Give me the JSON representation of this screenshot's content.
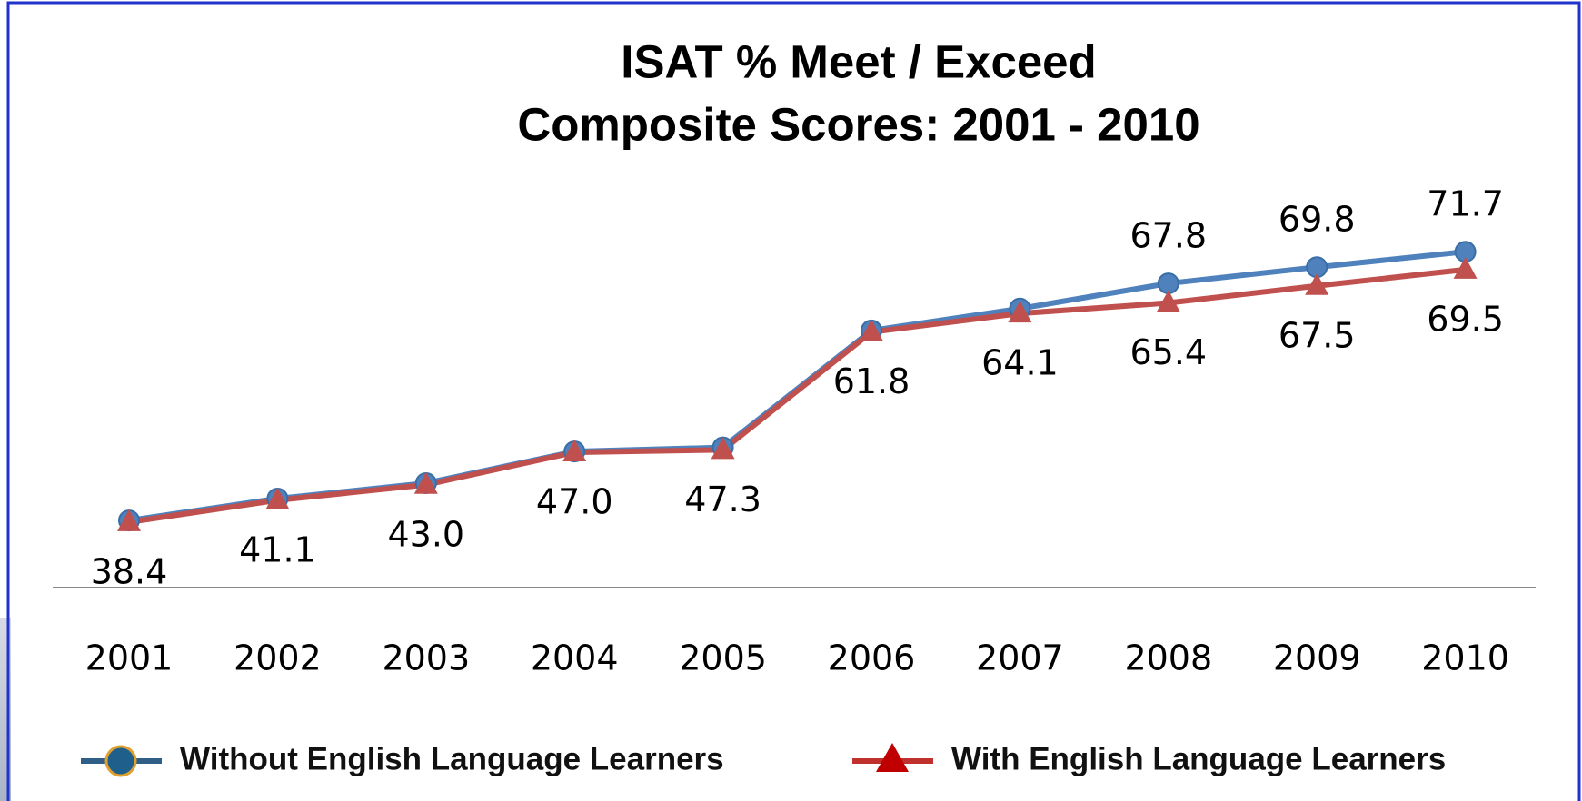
{
  "chart_data": {
    "type": "line",
    "title": [
      "ISAT % Meet / Exceed",
      "Composite Scores: 2001 - 2010"
    ],
    "categories": [
      "2001",
      "2002",
      "2003",
      "2004",
      "2005",
      "2006",
      "2007",
      "2008",
      "2009",
      "2010"
    ],
    "series": [
      {
        "name": "Without English Language Learners",
        "color": "#4f81bd",
        "marker": "circle",
        "values": [
          38.6,
          41.3,
          43.2,
          47.1,
          47.6,
          62.0,
          64.7,
          67.8,
          69.8,
          71.7
        ],
        "value_labels": [
          null,
          null,
          null,
          null,
          null,
          null,
          null,
          "67.8",
          "69.8",
          "71.7"
        ]
      },
      {
        "name": "With English Language Learners",
        "color": "#c0504d",
        "marker": "triangle",
        "values": [
          38.4,
          41.1,
          43.0,
          47.0,
          47.3,
          61.8,
          64.1,
          65.4,
          67.5,
          69.5
        ],
        "value_labels": [
          "38.4",
          "41.1",
          "43.0",
          "47.0",
          "47.3",
          "61.8",
          "64.1",
          "65.4",
          "67.5",
          "69.5"
        ]
      }
    ],
    "ylim": [
      30,
      80
    ]
  }
}
